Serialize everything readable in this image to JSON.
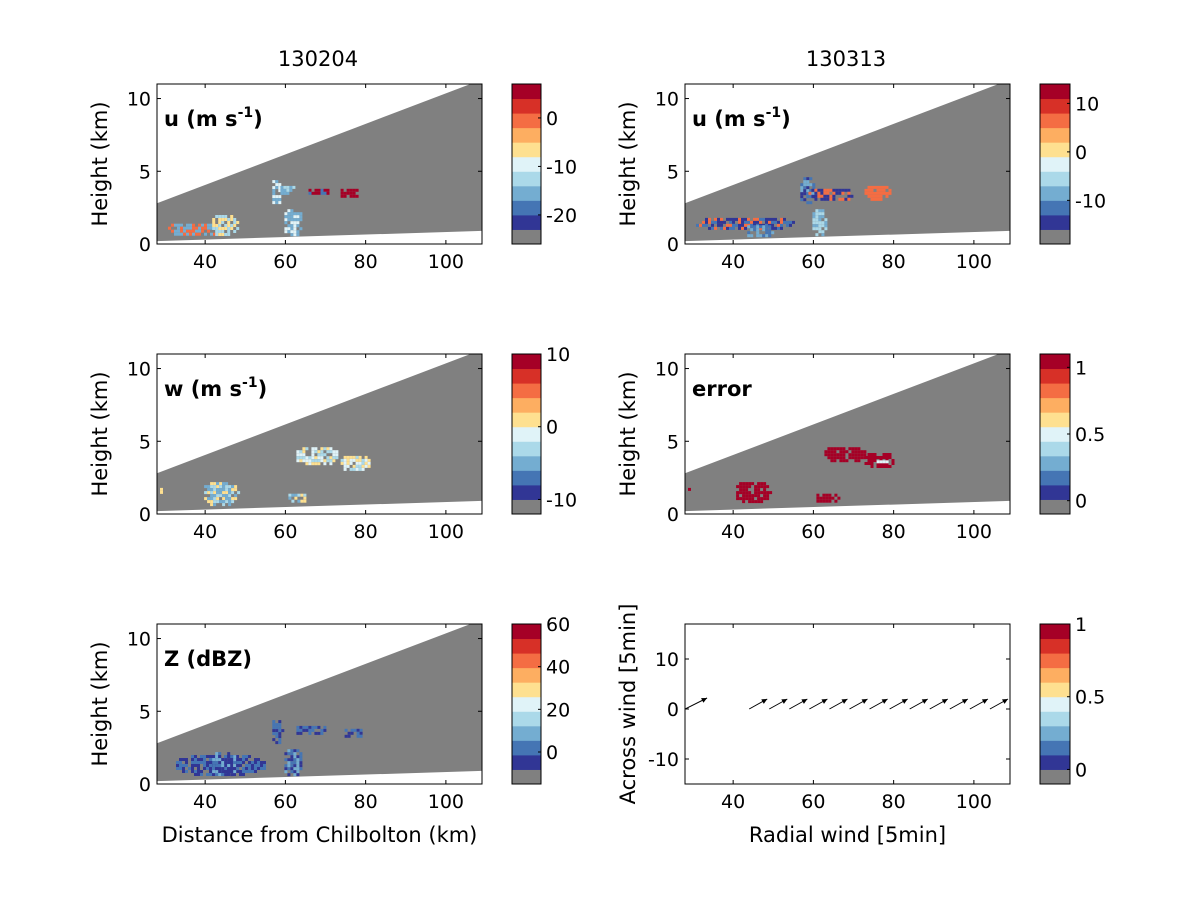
{
  "columns": [
    {
      "title": "130204"
    },
    {
      "title": "130313"
    }
  ],
  "xlabel_bottom_left": "Distance from Chilbolton (km)",
  "colors": {
    "background_gray": "#808080",
    "scale": [
      "#808080",
      "#313695",
      "#4575b4",
      "#74add1",
      "#abd9e9",
      "#e0f3f8",
      "#fee090",
      "#fdae61",
      "#f46d43",
      "#d73027",
      "#a50026"
    ]
  },
  "chart_data": [
    {
      "id": "u-130204",
      "type": "heatmap",
      "label": "u (m s",
      "label_sup": "-1",
      "label_suffix": ")",
      "ylabel": "Height (km)",
      "xlim": [
        28,
        109
      ],
      "ylim": [
        0,
        11
      ],
      "xticks": [
        "40",
        "60",
        "80",
        "100"
      ],
      "yticks": [
        "0",
        "5",
        "10"
      ],
      "colorbar": {
        "range": [
          -26,
          7
        ],
        "ticks": [
          "0",
          "-10",
          "-20"
        ],
        "tick_values": [
          0,
          -10,
          -20
        ]
      },
      "blobs": [
        {
          "x": [
            30,
            44
          ],
          "y": [
            0.6,
            1.6
          ],
          "c": [
            3,
            8
          ]
        },
        {
          "x": [
            41,
            48
          ],
          "y": [
            0.6,
            2.2
          ],
          "c": [
            4,
            6
          ]
        },
        {
          "x": [
            56,
            59
          ],
          "y": [
            2.8,
            4.6
          ],
          "c": [
            3,
            5
          ]
        },
        {
          "x": [
            59,
            64
          ],
          "y": [
            0.6,
            2.6
          ],
          "c": [
            3,
            5
          ]
        },
        {
          "x": [
            58,
            62
          ],
          "y": [
            3.4,
            4.2
          ],
          "c": [
            3,
            4
          ]
        },
        {
          "x": [
            65,
            71
          ],
          "y": [
            3.4,
            4.0
          ],
          "c": [
            10,
            2
          ]
        },
        {
          "x": [
            73,
            78
          ],
          "y": [
            3.2,
            4.0
          ],
          "c": [
            10
          ]
        }
      ]
    },
    {
      "id": "u-130313",
      "type": "heatmap",
      "label": "u (m s",
      "label_sup": "-1",
      "label_suffix": ")",
      "ylabel": "Height (km)",
      "xlim": [
        28,
        109
      ],
      "ylim": [
        0,
        11
      ],
      "xticks": [
        "40",
        "60",
        "80",
        "100"
      ],
      "yticks": [
        "0",
        "5",
        "10"
      ],
      "colorbar": {
        "range": [
          -19,
          14
        ],
        "ticks": [
          "10",
          "0",
          "-10"
        ],
        "tick_values": [
          10,
          0,
          -10
        ]
      },
      "blobs": [
        {
          "x": [
            30,
            55
          ],
          "y": [
            1.0,
            2.0
          ],
          "c": [
            8,
            1,
            2
          ]
        },
        {
          "x": [
            42,
            50
          ],
          "y": [
            0.5,
            1.5
          ],
          "c": [
            2,
            3
          ]
        },
        {
          "x": [
            56,
            60
          ],
          "y": [
            2.8,
            4.8
          ],
          "c": [
            1,
            2,
            3
          ]
        },
        {
          "x": [
            59,
            63
          ],
          "y": [
            0.6,
            2.6
          ],
          "c": [
            3,
            4
          ]
        },
        {
          "x": [
            58,
            70
          ],
          "y": [
            3.0,
            4.0
          ],
          "c": [
            8,
            1
          ]
        },
        {
          "x": [
            72,
            79
          ],
          "y": [
            3.0,
            4.2
          ],
          "c": [
            8
          ]
        }
      ]
    },
    {
      "id": "w-130204",
      "type": "heatmap",
      "label": "w (m s",
      "label_sup": "-1",
      "label_suffix": ")",
      "ylabel": "Height (km)",
      "xlim": [
        28,
        109
      ],
      "ylim": [
        0,
        11
      ],
      "xticks": [
        "40",
        "60",
        "80",
        "100"
      ],
      "yticks": [
        "0",
        "5",
        "10"
      ],
      "colorbar": {
        "range": [
          -12,
          10
        ],
        "ticks": [
          "10",
          "0",
          "-10"
        ],
        "tick_values": [
          10,
          0,
          -10
        ]
      },
      "blobs": [
        {
          "x": [
            28,
            29.5
          ],
          "y": [
            1.4,
            2.0
          ],
          "c": [
            6
          ]
        },
        {
          "x": [
            39,
            48
          ],
          "y": [
            0.6,
            2.4
          ],
          "c": [
            3,
            4,
            6
          ]
        },
        {
          "x": [
            60,
            65
          ],
          "y": [
            0.8,
            1.6
          ],
          "c": [
            3,
            4,
            6
          ]
        },
        {
          "x": [
            62,
            73
          ],
          "y": [
            3.4,
            4.8
          ],
          "c": [
            4,
            5,
            6
          ]
        },
        {
          "x": [
            73,
            81
          ],
          "y": [
            3.0,
            4.2
          ],
          "c": [
            4,
            5,
            6
          ]
        }
      ]
    },
    {
      "id": "error-130313",
      "type": "heatmap",
      "label": "error",
      "label_sup": "",
      "label_suffix": "",
      "ylabel": "Height (km)",
      "xlim": [
        28,
        109
      ],
      "ylim": [
        0,
        11
      ],
      "xticks": [
        "40",
        "60",
        "80",
        "100"
      ],
      "yticks": [
        "0",
        "5",
        "10"
      ],
      "colorbar": {
        "range": [
          -0.1,
          1.1
        ],
        "ticks": [
          "1",
          "0.5",
          "0"
        ],
        "tick_values": [
          1,
          0.5,
          0
        ]
      },
      "blobs": [
        {
          "x": [
            28,
            29.5
          ],
          "y": [
            1.4,
            2.0
          ],
          "c": [
            10
          ]
        },
        {
          "x": [
            40,
            49
          ],
          "y": [
            0.8,
            2.4
          ],
          "c": [
            10
          ]
        },
        {
          "x": [
            60,
            66
          ],
          "y": [
            0.8,
            1.6
          ],
          "c": [
            10
          ]
        },
        {
          "x": [
            62,
            73
          ],
          "y": [
            3.6,
            4.8
          ],
          "c": [
            10
          ]
        },
        {
          "x": [
            72,
            80
          ],
          "y": [
            3.2,
            4.4
          ],
          "c": [
            10
          ]
        },
        {
          "x": [
            75,
            78
          ],
          "y": [
            3.5,
            3.9
          ],
          "c": [
            5
          ]
        }
      ]
    },
    {
      "id": "z-130204",
      "type": "heatmap",
      "label": "Z (dBZ)",
      "label_sup": "",
      "label_suffix": "",
      "ylabel": "Height (km)",
      "xlabel": "Distance from Chilbolton (km)",
      "xlim": [
        28,
        109
      ],
      "ylim": [
        0,
        11
      ],
      "xticks": [
        "40",
        "60",
        "80",
        "100"
      ],
      "yticks": [
        "0",
        "5",
        "10"
      ],
      "colorbar": {
        "range": [
          -15,
          60
        ],
        "ticks": [
          "60",
          "40",
          "20",
          "0"
        ],
        "tick_values": [
          60,
          40,
          20,
          0
        ]
      },
      "blobs": [
        {
          "x": [
            32,
            55
          ],
          "y": [
            0.6,
            2.2
          ],
          "c": [
            1,
            2
          ]
        },
        {
          "x": [
            41,
            48
          ],
          "y": [
            0.6,
            2.4
          ],
          "c": [
            1,
            2,
            3
          ]
        },
        {
          "x": [
            56,
            59
          ],
          "y": [
            2.8,
            4.6
          ],
          "c": [
            1,
            2
          ]
        },
        {
          "x": [
            59,
            64
          ],
          "y": [
            0.6,
            2.6
          ],
          "c": [
            1,
            2,
            3
          ]
        },
        {
          "x": [
            62,
            70
          ],
          "y": [
            3.4,
            4.2
          ],
          "c": [
            1,
            2
          ]
        },
        {
          "x": [
            74,
            79
          ],
          "y": [
            3.2,
            4.0
          ],
          "c": [
            1,
            2
          ]
        }
      ]
    },
    {
      "id": "wind-130313",
      "type": "scatter",
      "label": "",
      "ylabel": "Across wind [5min]",
      "xlabel": "Radial wind [5min]",
      "xlim": [
        28,
        109
      ],
      "ylim": [
        -15,
        17
      ],
      "xticks": [
        "40",
        "60",
        "80",
        "100"
      ],
      "yticks": [
        "10",
        "0",
        "-10"
      ],
      "colorbar": {
        "range": [
          -0.1,
          1.0
        ],
        "ticks": [
          "1",
          "0.5",
          "0"
        ],
        "tick_values": [
          1,
          0.5,
          0
        ]
      },
      "arrows": {
        "x": [
          28,
          44,
          49,
          54,
          59,
          64,
          69,
          74,
          79,
          84,
          89,
          94,
          99,
          104
        ],
        "y": [
          0,
          0,
          0,
          0,
          0,
          0,
          0,
          0,
          0,
          0,
          0,
          0,
          0,
          0
        ],
        "u": [
          5.5,
          4.5,
          4.5,
          4.5,
          4.5,
          4.5,
          4.5,
          4.5,
          4.5,
          4.5,
          4.5,
          4.5,
          4.5,
          4.5
        ],
        "v": [
          2.2,
          2.0,
          2.0,
          2.0,
          2.0,
          2.0,
          2.0,
          2.0,
          2.0,
          2.0,
          2.0,
          2.0,
          2.0,
          2.0
        ]
      }
    }
  ]
}
